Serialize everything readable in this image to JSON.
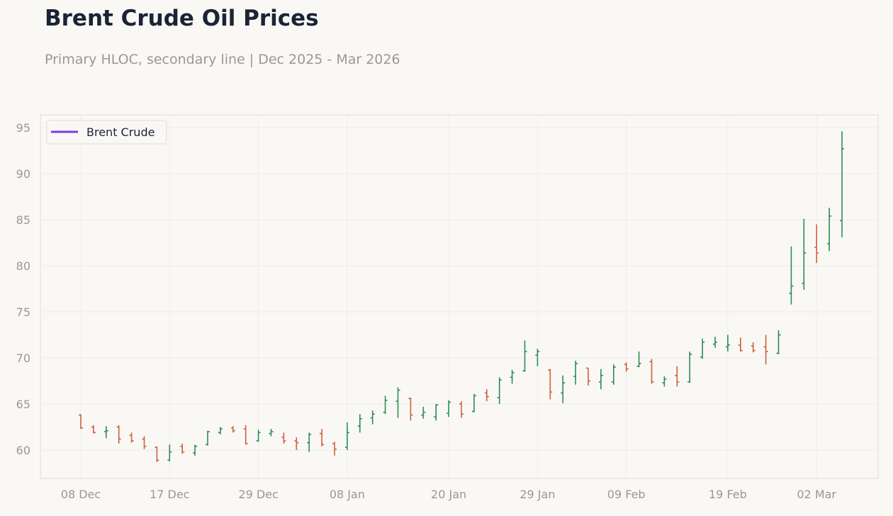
{
  "header": {
    "title": "Brent Crude Oil Prices",
    "subtitle": "Primary HLOC, secondary line | Dec 2025 - Mar 2026"
  },
  "colors": {
    "up": "#2e8b57",
    "down": "#cf5f3f",
    "legend_line": "#7c3aed",
    "grid": "#efedea",
    "frame": "#dddbd6"
  },
  "chart_data": {
    "type": "hloc",
    "legend": {
      "placement": "top-left",
      "items": [
        {
          "label": "Brent Crude",
          "color": "#7c3aed"
        }
      ]
    },
    "ylim": [
      57,
      96
    ],
    "y_ticks": [
      60,
      65,
      70,
      75,
      80,
      85,
      90,
      95
    ],
    "x_ticks": [
      "08 Dec",
      "17 Dec",
      "29 Dec",
      "08 Jan",
      "20 Jan",
      "29 Jan",
      "09 Feb",
      "19 Feb",
      "02 Mar"
    ],
    "grid": true,
    "series": [
      {
        "name": "Brent Crude",
        "ohlc": [
          {
            "x": "08 Dec",
            "open": 63.8,
            "high": 63.9,
            "low": 62.3,
            "close": 62.4
          },
          {
            "x": "09 Dec",
            "open": 62.5,
            "high": 62.7,
            "low": 61.8,
            "close": 61.9
          },
          {
            "x": "10 Dec",
            "open": 62.0,
            "high": 62.6,
            "low": 61.3,
            "close": 62.1
          },
          {
            "x": "11 Dec",
            "open": 62.5,
            "high": 62.7,
            "low": 60.7,
            "close": 61.2
          },
          {
            "x": "12 Dec",
            "open": 61.6,
            "high": 61.9,
            "low": 60.8,
            "close": 61.0
          },
          {
            "x": "15 Dec",
            "open": 61.2,
            "high": 61.5,
            "low": 60.1,
            "close": 60.4
          },
          {
            "x": "16 Dec",
            "open": 60.3,
            "high": 60.4,
            "low": 58.7,
            "close": 58.9
          },
          {
            "x": "17 Dec",
            "open": 58.9,
            "high": 60.6,
            "low": 58.8,
            "close": 59.8
          },
          {
            "x": "18 Dec",
            "open": 60.4,
            "high": 60.7,
            "low": 59.6,
            "close": 59.8
          },
          {
            "x": "19 Dec",
            "open": 59.7,
            "high": 60.6,
            "low": 59.4,
            "close": 60.4
          },
          {
            "x": "22 Dec",
            "open": 60.6,
            "high": 62.1,
            "low": 60.5,
            "close": 62.0
          },
          {
            "x": "23 Dec",
            "open": 61.9,
            "high": 62.5,
            "low": 61.7,
            "close": 62.3
          },
          {
            "x": "24 Dec",
            "open": 62.4,
            "high": 62.6,
            "low": 61.9,
            "close": 62.1
          },
          {
            "x": "26 Dec",
            "open": 62.3,
            "high": 62.7,
            "low": 60.6,
            "close": 60.7
          },
          {
            "x": "29 Dec",
            "open": 61.0,
            "high": 62.2,
            "low": 60.9,
            "close": 61.9
          },
          {
            "x": "30 Dec",
            "open": 61.8,
            "high": 62.3,
            "low": 61.5,
            "close": 62.0
          },
          {
            "x": "31 Dec",
            "open": 61.4,
            "high": 61.9,
            "low": 60.7,
            "close": 61.0
          },
          {
            "x": "02 Jan",
            "open": 61.0,
            "high": 61.4,
            "low": 60.0,
            "close": 60.8
          },
          {
            "x": "05 Jan",
            "open": 60.8,
            "high": 61.9,
            "low": 59.8,
            "close": 61.7
          },
          {
            "x": "06 Jan",
            "open": 61.8,
            "high": 62.3,
            "low": 60.4,
            "close": 60.6
          },
          {
            "x": "07 Jan",
            "open": 60.7,
            "high": 60.9,
            "low": 59.4,
            "close": 60.1
          },
          {
            "x": "08 Jan",
            "open": 60.3,
            "high": 63.0,
            "low": 60.0,
            "close": 61.9
          },
          {
            "x": "09 Jan",
            "open": 62.6,
            "high": 63.9,
            "low": 61.9,
            "close": 63.4
          },
          {
            "x": "12 Jan",
            "open": 63.5,
            "high": 64.3,
            "low": 62.8,
            "close": 63.9
          },
          {
            "x": "13 Jan",
            "open": 64.1,
            "high": 65.9,
            "low": 63.9,
            "close": 65.4
          },
          {
            "x": "14 Jan",
            "open": 65.3,
            "high": 66.8,
            "low": 63.5,
            "close": 66.5
          },
          {
            "x": "15 Jan",
            "open": 65.6,
            "high": 65.7,
            "low": 63.2,
            "close": 63.8
          },
          {
            "x": "16 Jan",
            "open": 63.8,
            "high": 64.7,
            "low": 63.4,
            "close": 64.1
          },
          {
            "x": "19 Jan",
            "open": 63.6,
            "high": 65.0,
            "low": 63.2,
            "close": 64.9
          },
          {
            "x": "20 Jan",
            "open": 64.0,
            "high": 65.4,
            "low": 63.6,
            "close": 65.2
          },
          {
            "x": "21 Jan",
            "open": 65.0,
            "high": 65.3,
            "low": 63.5,
            "close": 63.9
          },
          {
            "x": "22 Jan",
            "open": 64.2,
            "high": 66.1,
            "low": 64.1,
            "close": 65.9
          },
          {
            "x": "23 Jan",
            "open": 66.2,
            "high": 66.6,
            "low": 65.3,
            "close": 65.8
          },
          {
            "x": "26 Jan",
            "open": 65.7,
            "high": 67.9,
            "low": 65.0,
            "close": 67.6
          },
          {
            "x": "27 Jan",
            "open": 67.9,
            "high": 68.7,
            "low": 67.2,
            "close": 68.4
          },
          {
            "x": "28 Jan",
            "open": 68.6,
            "high": 71.9,
            "low": 68.5,
            "close": 70.7
          },
          {
            "x": "29 Jan",
            "open": 70.3,
            "high": 71.0,
            "low": 69.1,
            "close": 70.7
          },
          {
            "x": "30 Jan",
            "open": 68.7,
            "high": 68.8,
            "low": 65.5,
            "close": 66.3
          },
          {
            "x": "02 Feb",
            "open": 66.2,
            "high": 68.1,
            "low": 65.1,
            "close": 67.3
          },
          {
            "x": "03 Feb",
            "open": 68.0,
            "high": 69.7,
            "low": 67.1,
            "close": 69.4
          },
          {
            "x": "04 Feb",
            "open": 68.9,
            "high": 68.9,
            "low": 67.0,
            "close": 67.5
          },
          {
            "x": "05 Feb",
            "open": 67.4,
            "high": 68.8,
            "low": 66.6,
            "close": 68.1
          },
          {
            "x": "06 Feb",
            "open": 67.4,
            "high": 69.3,
            "low": 67.1,
            "close": 69.0
          },
          {
            "x": "09 Feb",
            "open": 69.3,
            "high": 69.5,
            "low": 68.5,
            "close": 68.8
          },
          {
            "x": "10 Feb",
            "open": 69.1,
            "high": 70.7,
            "low": 69.0,
            "close": 69.4
          },
          {
            "x": "11 Feb",
            "open": 69.6,
            "high": 69.9,
            "low": 67.2,
            "close": 67.4
          },
          {
            "x": "12 Feb",
            "open": 67.3,
            "high": 68.0,
            "low": 66.9,
            "close": 67.7
          },
          {
            "x": "13 Feb",
            "open": 68.1,
            "high": 69.1,
            "low": 66.9,
            "close": 67.4
          },
          {
            "x": "16 Feb",
            "open": 67.4,
            "high": 70.7,
            "low": 67.3,
            "close": 70.4
          },
          {
            "x": "17 Feb",
            "open": 70.1,
            "high": 72.1,
            "low": 69.9,
            "close": 71.7
          },
          {
            "x": "18 Feb",
            "open": 71.5,
            "high": 72.3,
            "low": 71.1,
            "close": 71.7
          },
          {
            "x": "19 Feb",
            "open": 71.2,
            "high": 72.5,
            "low": 70.7,
            "close": 71.4
          },
          {
            "x": "20 Feb",
            "open": 71.4,
            "high": 72.2,
            "low": 70.7,
            "close": 70.8
          },
          {
            "x": "23 Feb",
            "open": 71.3,
            "high": 71.7,
            "low": 70.6,
            "close": 70.8
          },
          {
            "x": "24 Feb",
            "open": 71.2,
            "high": 72.5,
            "low": 69.3,
            "close": 70.7
          },
          {
            "x": "25 Feb",
            "open": 70.5,
            "high": 73.0,
            "low": 70.4,
            "close": 72.5
          },
          {
            "x": "26 Feb",
            "open": 77.0,
            "high": 82.1,
            "low": 75.8,
            "close": 77.8
          },
          {
            "x": "27 Feb",
            "open": 78.1,
            "high": 85.1,
            "low": 77.4,
            "close": 81.4
          },
          {
            "x": "02 Mar",
            "open": 82.0,
            "high": 84.5,
            "low": 80.3,
            "close": 81.4
          },
          {
            "x": "03 Mar",
            "open": 82.4,
            "high": 86.3,
            "low": 81.6,
            "close": 85.4
          },
          {
            "x": "04 Mar",
            "open": 84.9,
            "high": 94.6,
            "low": 83.1,
            "close": 92.7
          }
        ]
      }
    ]
  }
}
